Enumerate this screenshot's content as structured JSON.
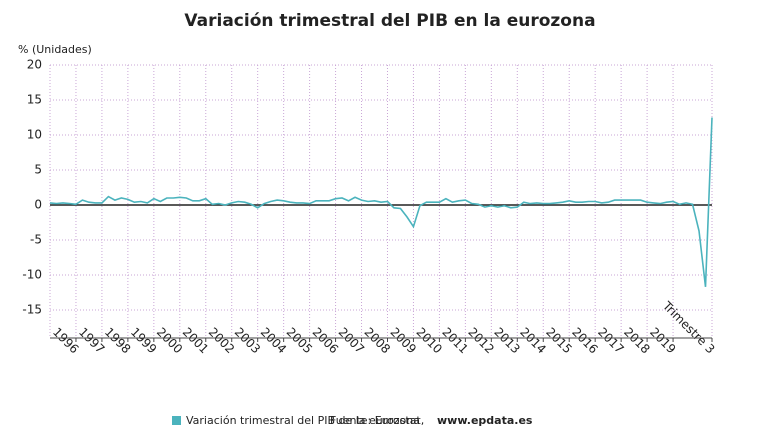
{
  "chart_data": {
    "type": "line",
    "title": "Variación trimestral del PIB en la eurozona",
    "y_label": "% (Unidades)",
    "source_label": "Fuente: Eurostat,",
    "source_site": "www.epdata.es",
    "categories": [
      null,
      null,
      null,
      null,
      "1996",
      null,
      null,
      null,
      "1997",
      null,
      null,
      null,
      "1998",
      null,
      null,
      null,
      "1999",
      null,
      null,
      null,
      "2000",
      null,
      null,
      null,
      "2001",
      null,
      null,
      null,
      "2002",
      null,
      null,
      null,
      "2003",
      null,
      null,
      null,
      "2004",
      null,
      null,
      null,
      "2005",
      null,
      null,
      null,
      "2006",
      null,
      null,
      null,
      "2007",
      null,
      null,
      null,
      "2008",
      null,
      null,
      null,
      "2009",
      null,
      null,
      null,
      "2010",
      null,
      null,
      null,
      "2011",
      null,
      null,
      null,
      "2012",
      null,
      null,
      null,
      "2013",
      null,
      null,
      null,
      "2014",
      null,
      null,
      null,
      "2015",
      null,
      null,
      null,
      "2016",
      null,
      null,
      null,
      "2017",
      null,
      null,
      null,
      "2018",
      null,
      null,
      null,
      "2019",
      null,
      null,
      null,
      null,
      null,
      "Trimestre 3"
    ],
    "series": [
      {
        "name": "Variación trimestral del PIB de la eurozona",
        "color": "#4bb3bd",
        "values": [
          0.3,
          0.2,
          0.3,
          0.2,
          0.1,
          0.7,
          0.4,
          0.3,
          0.3,
          1.2,
          0.7,
          1.0,
          0.8,
          0.4,
          0.5,
          0.3,
          0.9,
          0.5,
          1.0,
          1.0,
          1.1,
          1.0,
          0.6,
          0.6,
          0.9,
          0.1,
          0.2,
          0.0,
          0.3,
          0.5,
          0.4,
          0.1,
          -0.4,
          0.2,
          0.5,
          0.7,
          0.6,
          0.4,
          0.3,
          0.3,
          0.2,
          0.6,
          0.6,
          0.6,
          0.9,
          1.0,
          0.6,
          1.1,
          0.7,
          0.5,
          0.6,
          0.4,
          0.5,
          -0.4,
          -0.5,
          -1.7,
          -3.1,
          -0.1,
          0.4,
          0.4,
          0.4,
          0.9,
          0.4,
          0.6,
          0.7,
          0.2,
          0.1,
          -0.3,
          -0.1,
          -0.3,
          -0.1,
          -0.4,
          -0.3,
          0.4,
          0.2,
          0.3,
          0.2,
          0.2,
          0.3,
          0.4,
          0.6,
          0.4,
          0.4,
          0.5,
          0.5,
          0.3,
          0.4,
          0.7,
          0.7,
          0.7,
          0.7,
          0.7,
          0.4,
          0.3,
          0.2,
          0.4,
          0.5,
          0.1,
          0.3,
          0.1,
          -3.7,
          -11.7,
          12.5
        ]
      }
    ],
    "ylim": [
      -19,
      20
    ],
    "yticks": [
      20,
      15,
      10,
      5,
      0,
      -5,
      -10,
      -15
    ],
    "grid": true
  }
}
